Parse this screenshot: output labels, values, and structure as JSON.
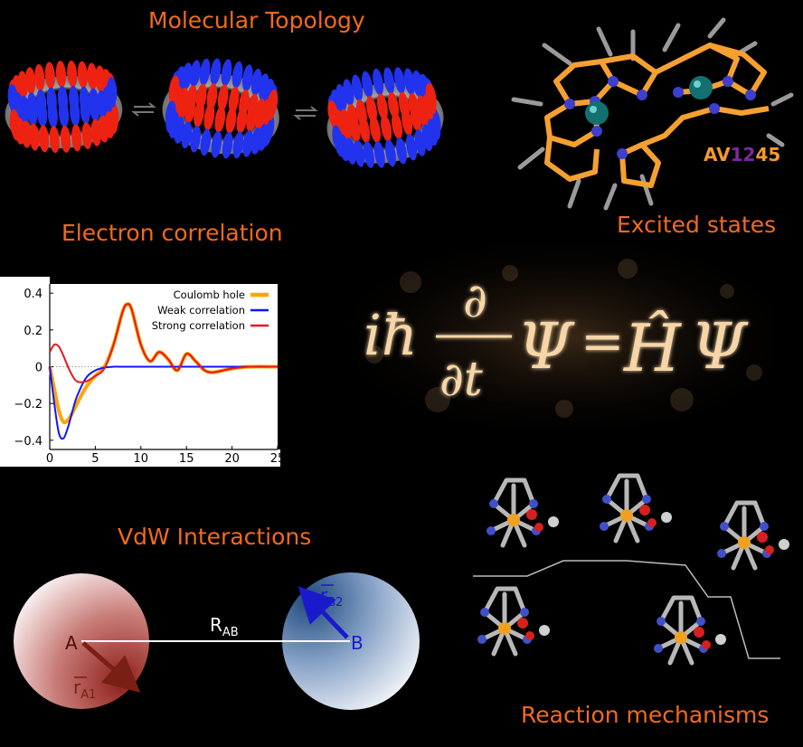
{
  "titles": {
    "topology": "Molecular Topology",
    "correlation": "Electron correlation",
    "excited": "Excited states",
    "vdw": "VdW Interactions",
    "reaction": "Reaction mechanisms"
  },
  "molecule_label": {
    "prefix": "AV",
    "middle": "12",
    "suffix": "45"
  },
  "colors": {
    "accent": "#f26a1b",
    "coulomb": "#ffa500",
    "weak": "#1414ff",
    "strong": "#e41a1c",
    "blue_lobe": "#2233ee",
    "red_lobe": "#ee2211",
    "molecule_backbone": "#f5a030",
    "vdw_arrow_a": "#7a1f14",
    "vdw_arrow_b": "#1a1acc"
  },
  "chart_data": {
    "type": "line",
    "xlim": [
      0,
      25
    ],
    "ylim": [
      -0.45,
      0.45
    ],
    "x_ticks": [
      "0",
      "5",
      "10",
      "15",
      "20",
      "25"
    ],
    "y_ticks": [
      "0.4",
      "0.2",
      "0",
      "−0.2",
      "−0.4"
    ],
    "legend_position": "top-right",
    "series": [
      {
        "name": "Coulomb hole",
        "x": [
          0,
          0.5,
          1,
          1.5,
          2,
          2.5,
          3,
          4,
          5,
          6,
          7,
          8,
          8.5,
          9,
          10,
          11,
          12,
          13,
          14,
          15,
          16,
          17,
          18,
          20,
          22,
          25
        ],
        "y": [
          0,
          -0.12,
          -0.24,
          -0.3,
          -0.29,
          -0.25,
          -0.2,
          -0.11,
          -0.05,
          0,
          0.12,
          0.3,
          0.34,
          0.31,
          0.12,
          0.03,
          0.08,
          0.04,
          -0.02,
          0.07,
          0.03,
          -0.02,
          -0.03,
          -0.01,
          0,
          0
        ]
      },
      {
        "name": "Weak correlation",
        "x": [
          0,
          0.5,
          1,
          1.5,
          2,
          2.5,
          3,
          4,
          5,
          6,
          7,
          8,
          10,
          15,
          20,
          25
        ],
        "y": [
          0,
          -0.2,
          -0.36,
          -0.39,
          -0.33,
          -0.24,
          -0.16,
          -0.06,
          -0.02,
          -0.005,
          0,
          0,
          0,
          0,
          0,
          0
        ]
      },
      {
        "name": "Strong correlation",
        "x": [
          0,
          0.5,
          1,
          1.5,
          2,
          2.5,
          3,
          4,
          5,
          6,
          7,
          8,
          8.5,
          9,
          10,
          11,
          12,
          13,
          14,
          15,
          16,
          17,
          18,
          20,
          22,
          25
        ],
        "y": [
          0.08,
          0.12,
          0.11,
          0.06,
          0,
          -0.05,
          -0.08,
          -0.08,
          -0.05,
          -0.01,
          0.12,
          0.3,
          0.34,
          0.31,
          0.12,
          0.03,
          0.08,
          0.04,
          -0.02,
          0.07,
          0.03,
          -0.02,
          -0.03,
          -0.01,
          0,
          0
        ]
      }
    ]
  },
  "equation": {
    "lhs_prefix": "iħ",
    "numer": "∂",
    "denom": "∂t",
    "psi": "Ψ",
    "eq": "=",
    "op": "Ĥ"
  },
  "vdw": {
    "atom_a": "A",
    "atom_b": "B",
    "distance_label": "R",
    "distance_sub": "AB",
    "ra_label": "r",
    "ra_sub": "A1",
    "rb_label": "r",
    "rb_sub": "B2"
  }
}
